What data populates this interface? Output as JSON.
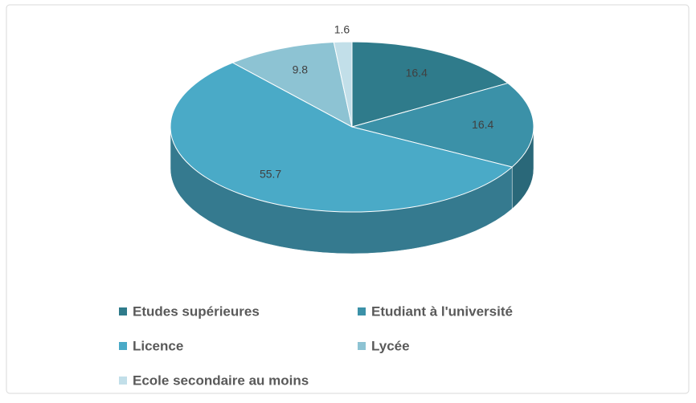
{
  "chart_data": {
    "type": "pie3d",
    "categories": [
      "Etudes supérieures",
      "Etudiant à l'université",
      "Licence",
      "Lycée",
      "Ecole secondaire au moins"
    ],
    "values": [
      16.4,
      16.4,
      55.7,
      9.8,
      1.6
    ],
    "colors": [
      "#2f7b8b",
      "#3b91a8",
      "#4aaac7",
      "#8dc3d3",
      "#c2dfe9"
    ]
  }
}
